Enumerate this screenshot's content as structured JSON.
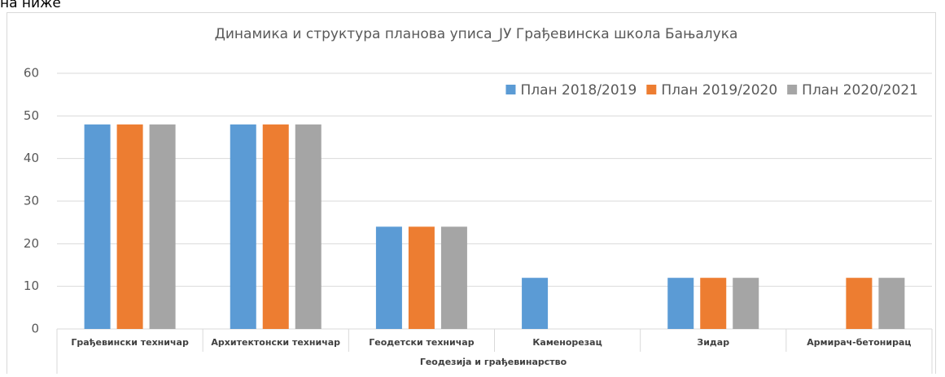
{
  "caption_top": "на ниже",
  "chart_data": {
    "type": "bar",
    "title": "Динамика и структура планова уписа_ЈУ Грађевинска школа Бањалука",
    "categories": [
      "Грађевински техничар",
      "Архитектонски техничар",
      "Геодетски техничар",
      "Каменорезац",
      "Зидар",
      "Армирач-бетонирац"
    ],
    "group": "Геодезија и грађевинарство",
    "series": [
      {
        "name": "План 2018/2019",
        "color": "#5b9bd5",
        "values": [
          48,
          48,
          24,
          12,
          12,
          null
        ]
      },
      {
        "name": "План 2019/2020",
        "color": "#ed7d31",
        "values": [
          48,
          48,
          24,
          null,
          12,
          12
        ]
      },
      {
        "name": "План 2020/2021",
        "color": "#a5a5a5",
        "values": [
          48,
          48,
          24,
          null,
          12,
          12
        ]
      }
    ],
    "ylim": [
      0,
      60
    ],
    "yticks": [
      0,
      10,
      20,
      30,
      40,
      50,
      60
    ],
    "grid": true,
    "legend": "top-right"
  }
}
